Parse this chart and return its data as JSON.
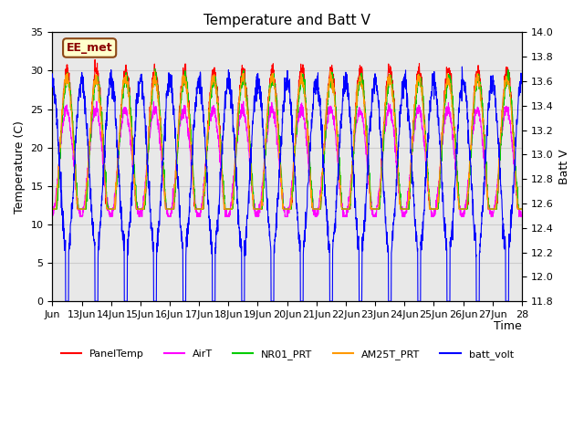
{
  "title": "Temperature and Batt V",
  "xlabel": "Time",
  "ylabel_left": "Temperature (C)",
  "ylabel_right": "Batt V",
  "annotation": "EE_met",
  "ylim_left": [
    0,
    35
  ],
  "ylim_right": [
    11.8,
    14.0
  ],
  "yticks_left": [
    0,
    5,
    10,
    15,
    20,
    25,
    30,
    35
  ],
  "yticks_right": [
    11.8,
    12.0,
    12.2,
    12.4,
    12.6,
    12.8,
    13.0,
    13.2,
    13.4,
    13.6,
    13.8,
    14.0
  ],
  "xtick_positions": [
    0,
    1,
    2,
    3,
    4,
    5,
    6,
    7,
    8,
    9,
    10,
    11,
    12,
    13,
    14,
    15,
    16
  ],
  "xtick_labels": [
    "Jun",
    "13Jun",
    "14Jun",
    "15Jun",
    "16Jun",
    "17Jun",
    "18Jun",
    "19Jun",
    "20Jun",
    "21Jun",
    "22Jun",
    "23Jun",
    "24Jun",
    "25Jun",
    "26Jun",
    "27Jun",
    "28"
  ],
  "colors": {
    "PanelTemp": "#ff0000",
    "AirT": "#ff00ff",
    "NR01_PRT": "#00cc00",
    "AM25T_PRT": "#ff9900",
    "batt_volt": "#0000ff"
  },
  "grid_color": "#cccccc",
  "bg_color": "#e8e8e8",
  "num_days": 16,
  "seed": 42
}
